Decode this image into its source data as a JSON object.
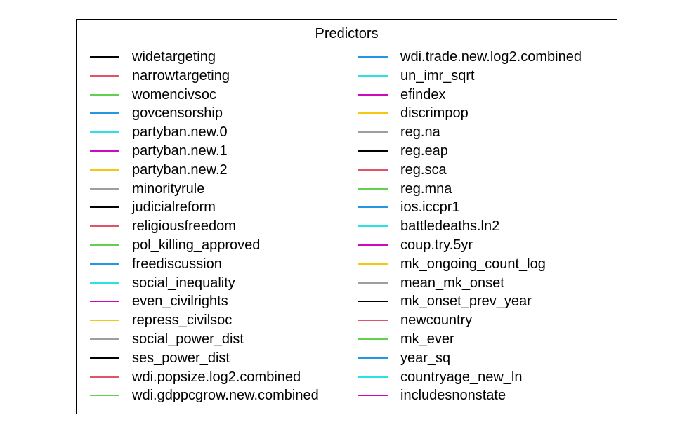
{
  "chart_data": {
    "type": "legend",
    "title": "Predictors",
    "palette": [
      "#000000",
      "#DF536B",
      "#61D04F",
      "#2297E6",
      "#28E2E5",
      "#CD0BBC",
      "#F5C710",
      "#9E9E9E"
    ],
    "columns": [
      [
        "widetargeting",
        "narrowtargeting",
        "womencivsoc",
        "govcensorship",
        "partyban.new.0",
        "partyban.new.1",
        "partyban.new.2",
        "minorityrule",
        "judicialreform",
        "religiousfreedom",
        "pol_killing_approved",
        "freediscussion",
        "social_inequality",
        "even_civilrights",
        "repress_civilsoc",
        "social_power_dist",
        "ses_power_dist",
        "wdi.popsize.log2.combined",
        "wdi.gdppcgrow.new.combined"
      ],
      [
        "wdi.trade.new.log2.combined",
        "un_imr_sqrt",
        "efindex",
        "discrimpop",
        "reg.na",
        "reg.eap",
        "reg.sca",
        "reg.mna",
        "ios.iccpr1",
        "battledeaths.ln2",
        "coup.try.5yr",
        "mk_ongoing_count_log",
        "mean_mk_onset",
        "mk_onset_prev_year",
        "newcountry",
        "mk_ever",
        "year_sq",
        "countryage_new_ln",
        "includesnonstate"
      ]
    ]
  }
}
